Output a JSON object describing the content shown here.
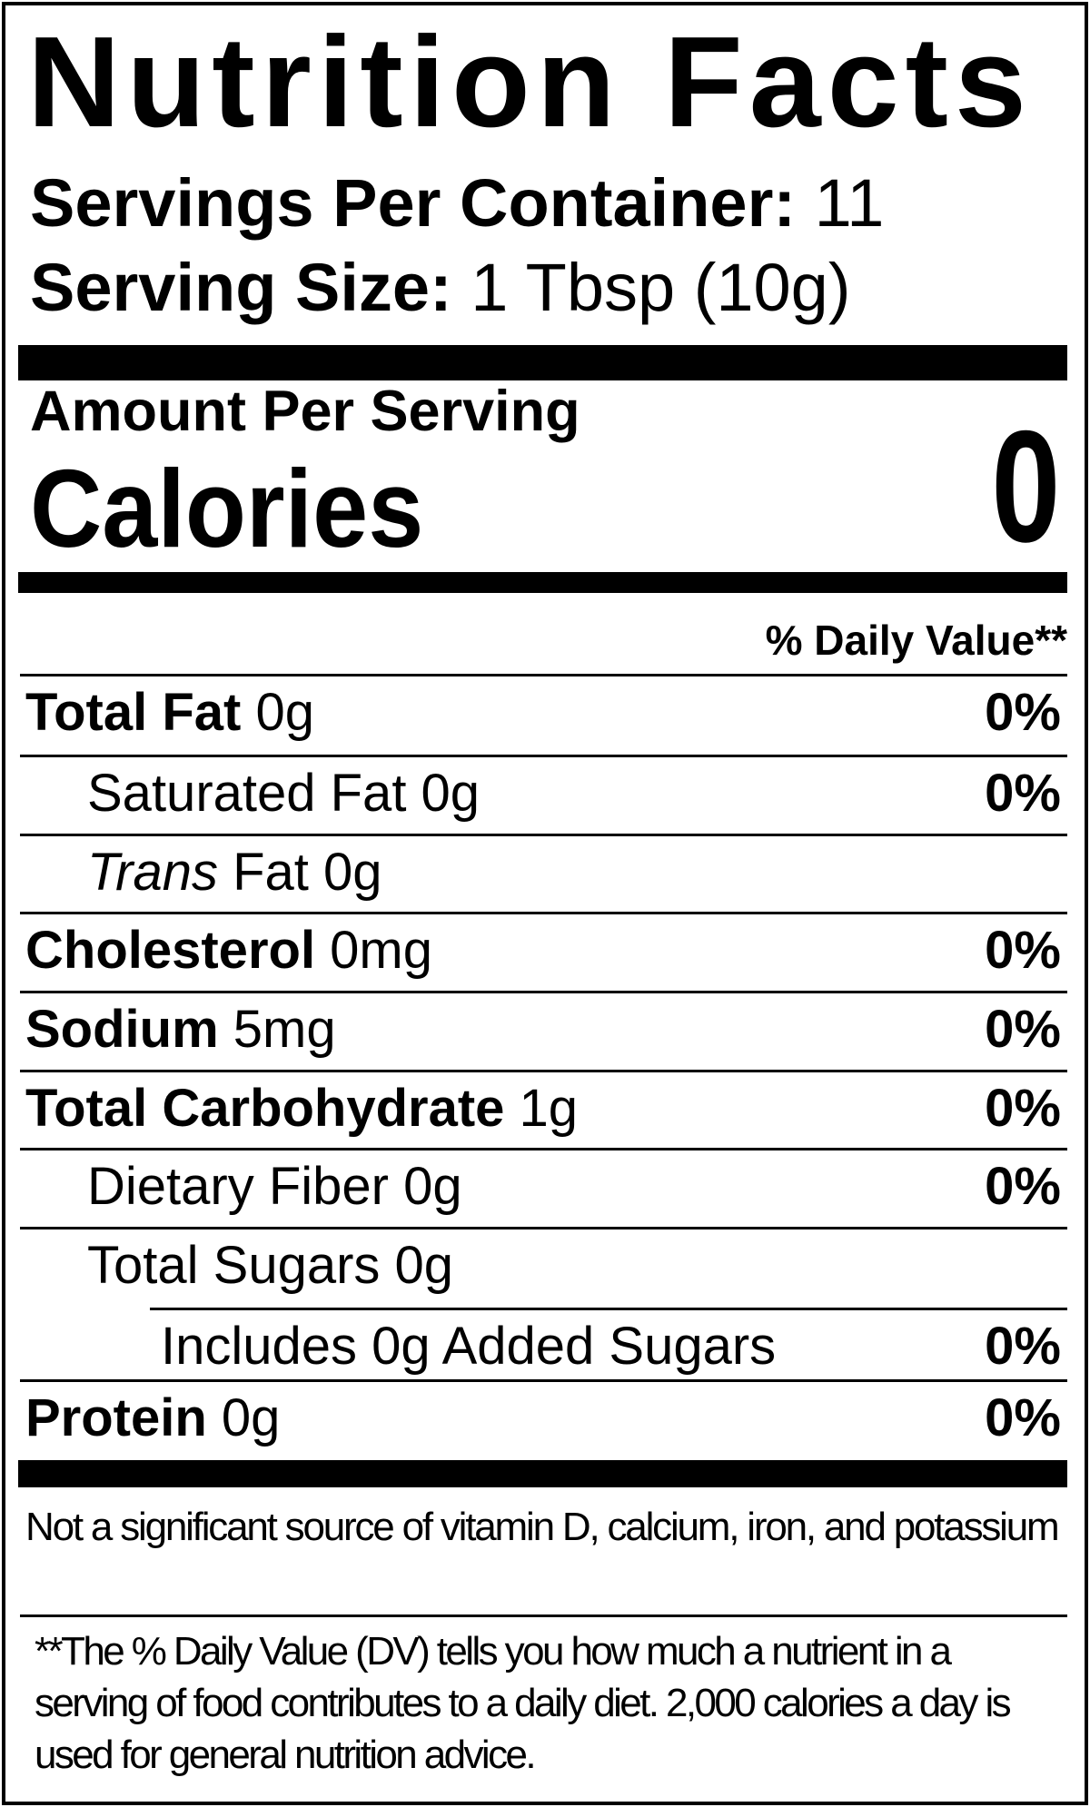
{
  "colors": {
    "text": "#000000",
    "background": "#ffffff"
  },
  "header": {
    "title": "Nutrition Facts",
    "servings_per_container": {
      "label": "Servings Per Container:",
      "value": "11"
    },
    "serving_size": {
      "label": "Serving Size:",
      "value": "1 Tbsp (10g)"
    }
  },
  "calories_section": {
    "amount_per_serving": "Amount Per Serving",
    "calories_label": "Calories",
    "calories_value": "0"
  },
  "daily_value_header": "% Daily Value**",
  "nutrients": [
    {
      "bold_text": "Total Fat",
      "text": " 0g",
      "dv": "0%"
    },
    {
      "text": "Saturated Fat 0g",
      "dv": "0%"
    },
    {
      "italic_text": "Trans",
      "text": " Fat 0g",
      "dv": ""
    },
    {
      "bold_text": "Cholesterol",
      "text": " 0mg",
      "dv": "0%"
    },
    {
      "bold_text": "Sodium",
      "text": " 5mg",
      "dv": "0%"
    },
    {
      "bold_text": "Total Carbohydrate",
      "text": " 1g",
      "dv": "0%"
    },
    {
      "text": "Dietary Fiber 0g",
      "dv": "0%"
    },
    {
      "text": "Total Sugars 0g",
      "dv": ""
    },
    {
      "text": "Includes 0g Added Sugars",
      "dv": "0%"
    },
    {
      "bold_text": "Protein",
      "text": " 0g",
      "dv": "0%"
    }
  ],
  "footer": {
    "not_significant": "Not a significant source of vitamin D, calcium, iron, and potassium",
    "daily_value_note": "**The % Daily Value (DV) tells you how much a nutrient in a serving of food contributes to a daily diet. 2,000 calories a day is used for general nutrition advice."
  }
}
